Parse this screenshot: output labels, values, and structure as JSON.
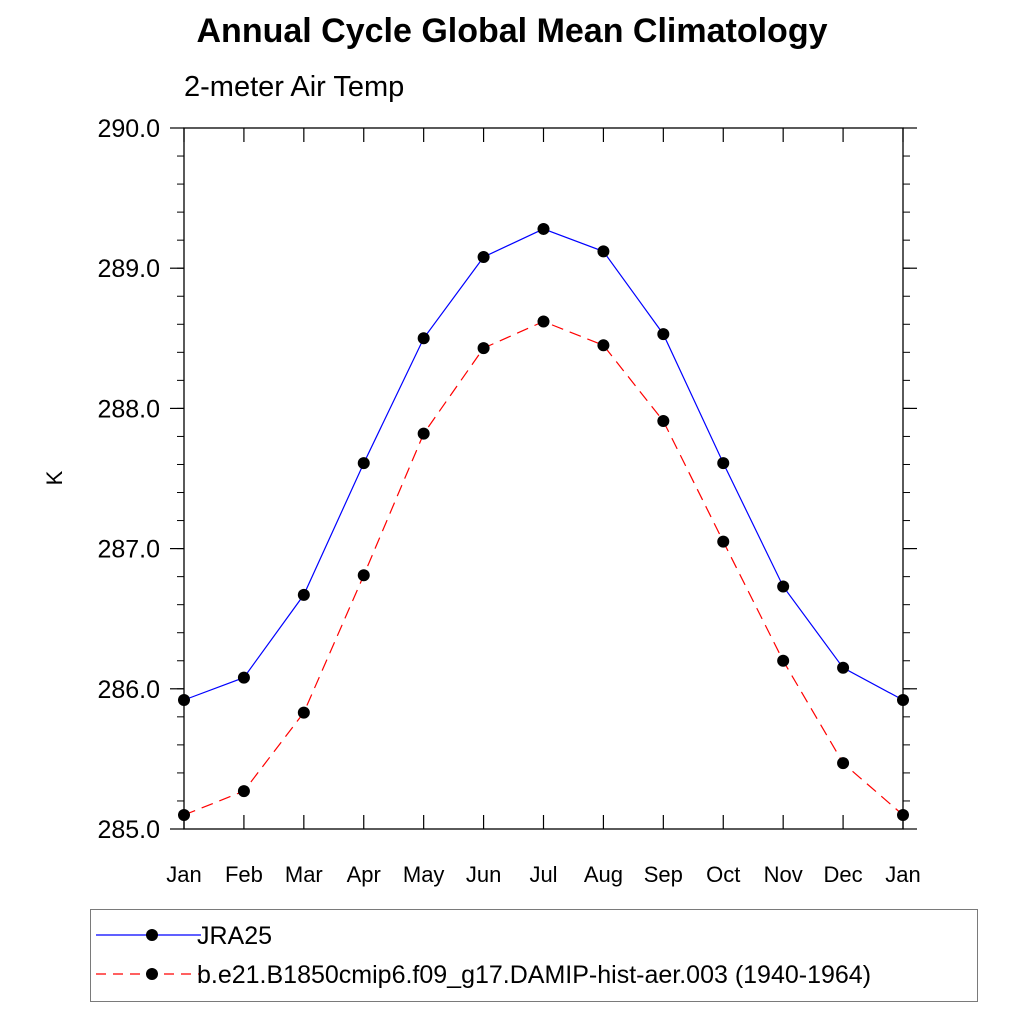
{
  "chart_data": {
    "type": "line",
    "title": "Annual Cycle Global Mean Climatology",
    "subtitle": "2-meter Air Temp",
    "xlabel": "",
    "ylabel": "K",
    "categories": [
      "Jan",
      "Feb",
      "Mar",
      "Apr",
      "May",
      "Jun",
      "Jul",
      "Aug",
      "Sep",
      "Oct",
      "Nov",
      "Dec",
      "Jan"
    ],
    "ylim": [
      285.0,
      290.0
    ],
    "yticks": [
      "285.0",
      "286.0",
      "287.0",
      "288.0",
      "289.0",
      "290.0"
    ],
    "grid": false,
    "legend_position": "bottom",
    "series": [
      {
        "name": "JRA25",
        "color": "#0000ff",
        "line_style": "solid",
        "marker": "filled-circle",
        "values": [
          285.92,
          286.08,
          286.67,
          287.61,
          288.5,
          289.08,
          289.28,
          289.12,
          288.53,
          287.61,
          286.73,
          286.15,
          285.92
        ]
      },
      {
        "name": "b.e21.B1850cmip6.f09_g17.DAMIP-hist-aer.003 (1940-1964)",
        "color": "#ff0000",
        "line_style": "dashed",
        "marker": "filled-circle",
        "values": [
          285.1,
          285.27,
          285.83,
          286.81,
          287.82,
          288.43,
          288.62,
          288.45,
          287.91,
          287.05,
          286.2,
          285.47,
          285.1
        ]
      }
    ]
  }
}
